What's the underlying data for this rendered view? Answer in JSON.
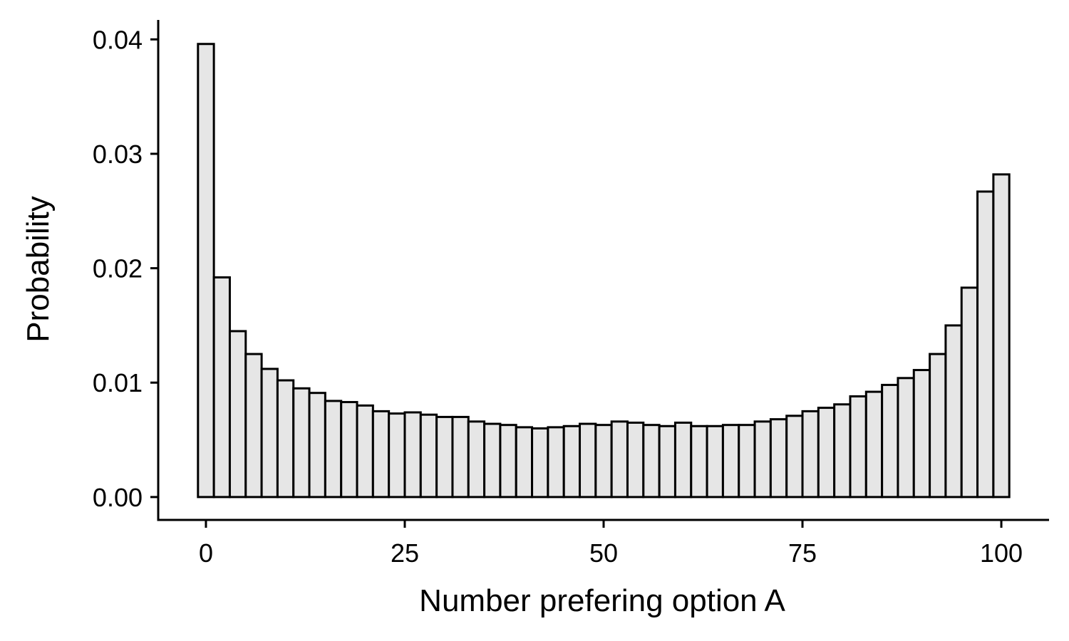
{
  "chart_data": {
    "type": "bar",
    "title": "",
    "xlabel": "Number prefering option A",
    "ylabel": "Probability",
    "xlim": [
      -6,
      106
    ],
    "ylim": [
      -0.002,
      0.0417
    ],
    "bin_width": 2,
    "x_ticks": [
      {
        "value": 0,
        "label": "0"
      },
      {
        "value": 25,
        "label": "25"
      },
      {
        "value": 50,
        "label": "50"
      },
      {
        "value": 75,
        "label": "75"
      },
      {
        "value": 100,
        "label": "100"
      }
    ],
    "y_ticks": [
      {
        "value": 0,
        "label": "0.00"
      },
      {
        "value": 0.01,
        "label": "0.01"
      },
      {
        "value": 0.02,
        "label": "0.02"
      },
      {
        "value": 0.03,
        "label": "0.03"
      },
      {
        "value": 0.04,
        "label": "0.04"
      }
    ],
    "bin_centers": [
      0,
      2,
      4,
      6,
      8,
      10,
      12,
      14,
      16,
      18,
      20,
      22,
      24,
      26,
      28,
      30,
      32,
      34,
      36,
      38,
      40,
      42,
      44,
      46,
      48,
      50,
      52,
      54,
      56,
      58,
      60,
      62,
      64,
      66,
      68,
      70,
      72,
      74,
      76,
      78,
      80,
      82,
      84,
      86,
      88,
      90,
      92,
      94,
      96,
      98,
      100
    ],
    "values": [
      0.0396,
      0.0192,
      0.0145,
      0.0125,
      0.0112,
      0.0102,
      0.0095,
      0.0091,
      0.0084,
      0.0083,
      0.008,
      0.0075,
      0.0073,
      0.0074,
      0.0072,
      0.007,
      0.007,
      0.0066,
      0.0064,
      0.0063,
      0.0061,
      0.006,
      0.0061,
      0.0062,
      0.0064,
      0.0063,
      0.0066,
      0.0065,
      0.0063,
      0.0062,
      0.0065,
      0.0062,
      0.0062,
      0.0063,
      0.0063,
      0.0066,
      0.0068,
      0.0071,
      0.0075,
      0.0078,
      0.0081,
      0.0088,
      0.0092,
      0.0098,
      0.0104,
      0.0111,
      0.0125,
      0.015,
      0.0183,
      0.0267,
      0.0282
    ],
    "bar_fill": "#e6e6e6",
    "bar_stroke": "#000000",
    "grid": false,
    "legend": "none"
  }
}
